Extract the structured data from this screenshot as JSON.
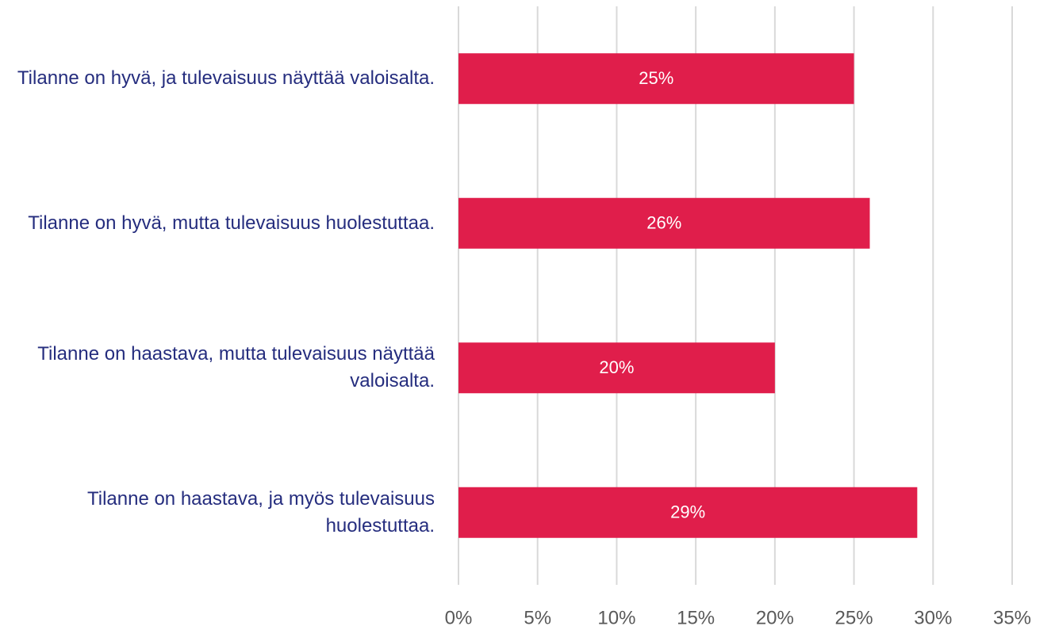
{
  "chart_data": {
    "type": "bar",
    "orientation": "horizontal",
    "categories": [
      "Tilanne on hyvä, ja tulevaisuus näyttää valoisalta.",
      "Tilanne on hyvä, mutta tulevaisuus huolestuttaa.",
      "Tilanne on haastava, mutta tulevaisuus näyttää valoisalta.",
      "Tilanne on haastava, ja myös tulevaisuus huolestuttaa."
    ],
    "values": [
      25,
      26,
      20,
      29
    ],
    "value_labels": [
      "25%",
      "26%",
      "20%",
      "29%"
    ],
    "color": "#e01e4b",
    "xlim": [
      0,
      35
    ],
    "xticks": [
      {
        "value": 0,
        "label": "0%"
      },
      {
        "value": 5,
        "label": "5%"
      },
      {
        "value": 10,
        "label": "10%"
      },
      {
        "value": 15,
        "label": "15%"
      },
      {
        "value": 20,
        "label": "20%"
      },
      {
        "value": 25,
        "label": "25%"
      },
      {
        "value": 30,
        "label": "30%"
      },
      {
        "value": 35,
        "label": "35%"
      }
    ],
    "grid": true
  }
}
